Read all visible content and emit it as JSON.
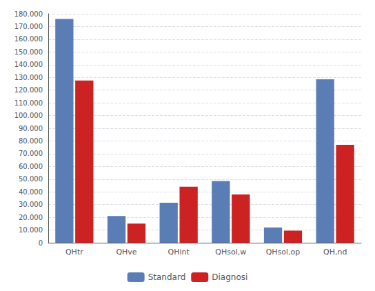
{
  "chart_data": {
    "type": "bar",
    "categories": [
      "QHtr",
      "QHve",
      "QHint",
      "QHsol,w",
      "QHsol,op",
      "QH,nd"
    ],
    "series": [
      {
        "name": "Standard",
        "color": "#5a7db5",
        "values": [
          176000,
          21000,
          31500,
          48500,
          12000,
          128500
        ]
      },
      {
        "name": "Diagnosi",
        "color": "#cc2222",
        "values": [
          127500,
          15000,
          44000,
          38000,
          9500,
          77000
        ]
      }
    ],
    "ylim": [
      0,
      180000
    ],
    "yticks": [
      0,
      {
        "value": 10000,
        "label": "10.000"
      },
      {
        "value": 20000,
        "label": "20.000"
      },
      {
        "value": 30000,
        "label": "30.000"
      },
      {
        "value": 40000,
        "label": "40.000"
      },
      {
        "value": 50000,
        "label": "50.000"
      },
      {
        "value": 60000,
        "label": "60.000"
      },
      {
        "value": 70000,
        "label": "70.000"
      },
      {
        "value": 80000,
        "label": "80.000"
      },
      {
        "value": 90000,
        "label": "90.000"
      },
      {
        "value": 100000,
        "label": "100.000"
      },
      {
        "value": 110000,
        "label": "110.000"
      },
      {
        "value": 120000,
        "label": "120.000"
      },
      {
        "value": 130000,
        "label": "130.000"
      },
      {
        "value": 140000,
        "label": "140.000"
      },
      {
        "value": 150000,
        "label": "150.000"
      },
      {
        "value": 160000,
        "label": "160.000"
      },
      {
        "value": 170000,
        "label": "170.000"
      },
      {
        "value": 180000,
        "label": "180.000"
      }
    ],
    "grid": true,
    "legend": "bottom"
  }
}
